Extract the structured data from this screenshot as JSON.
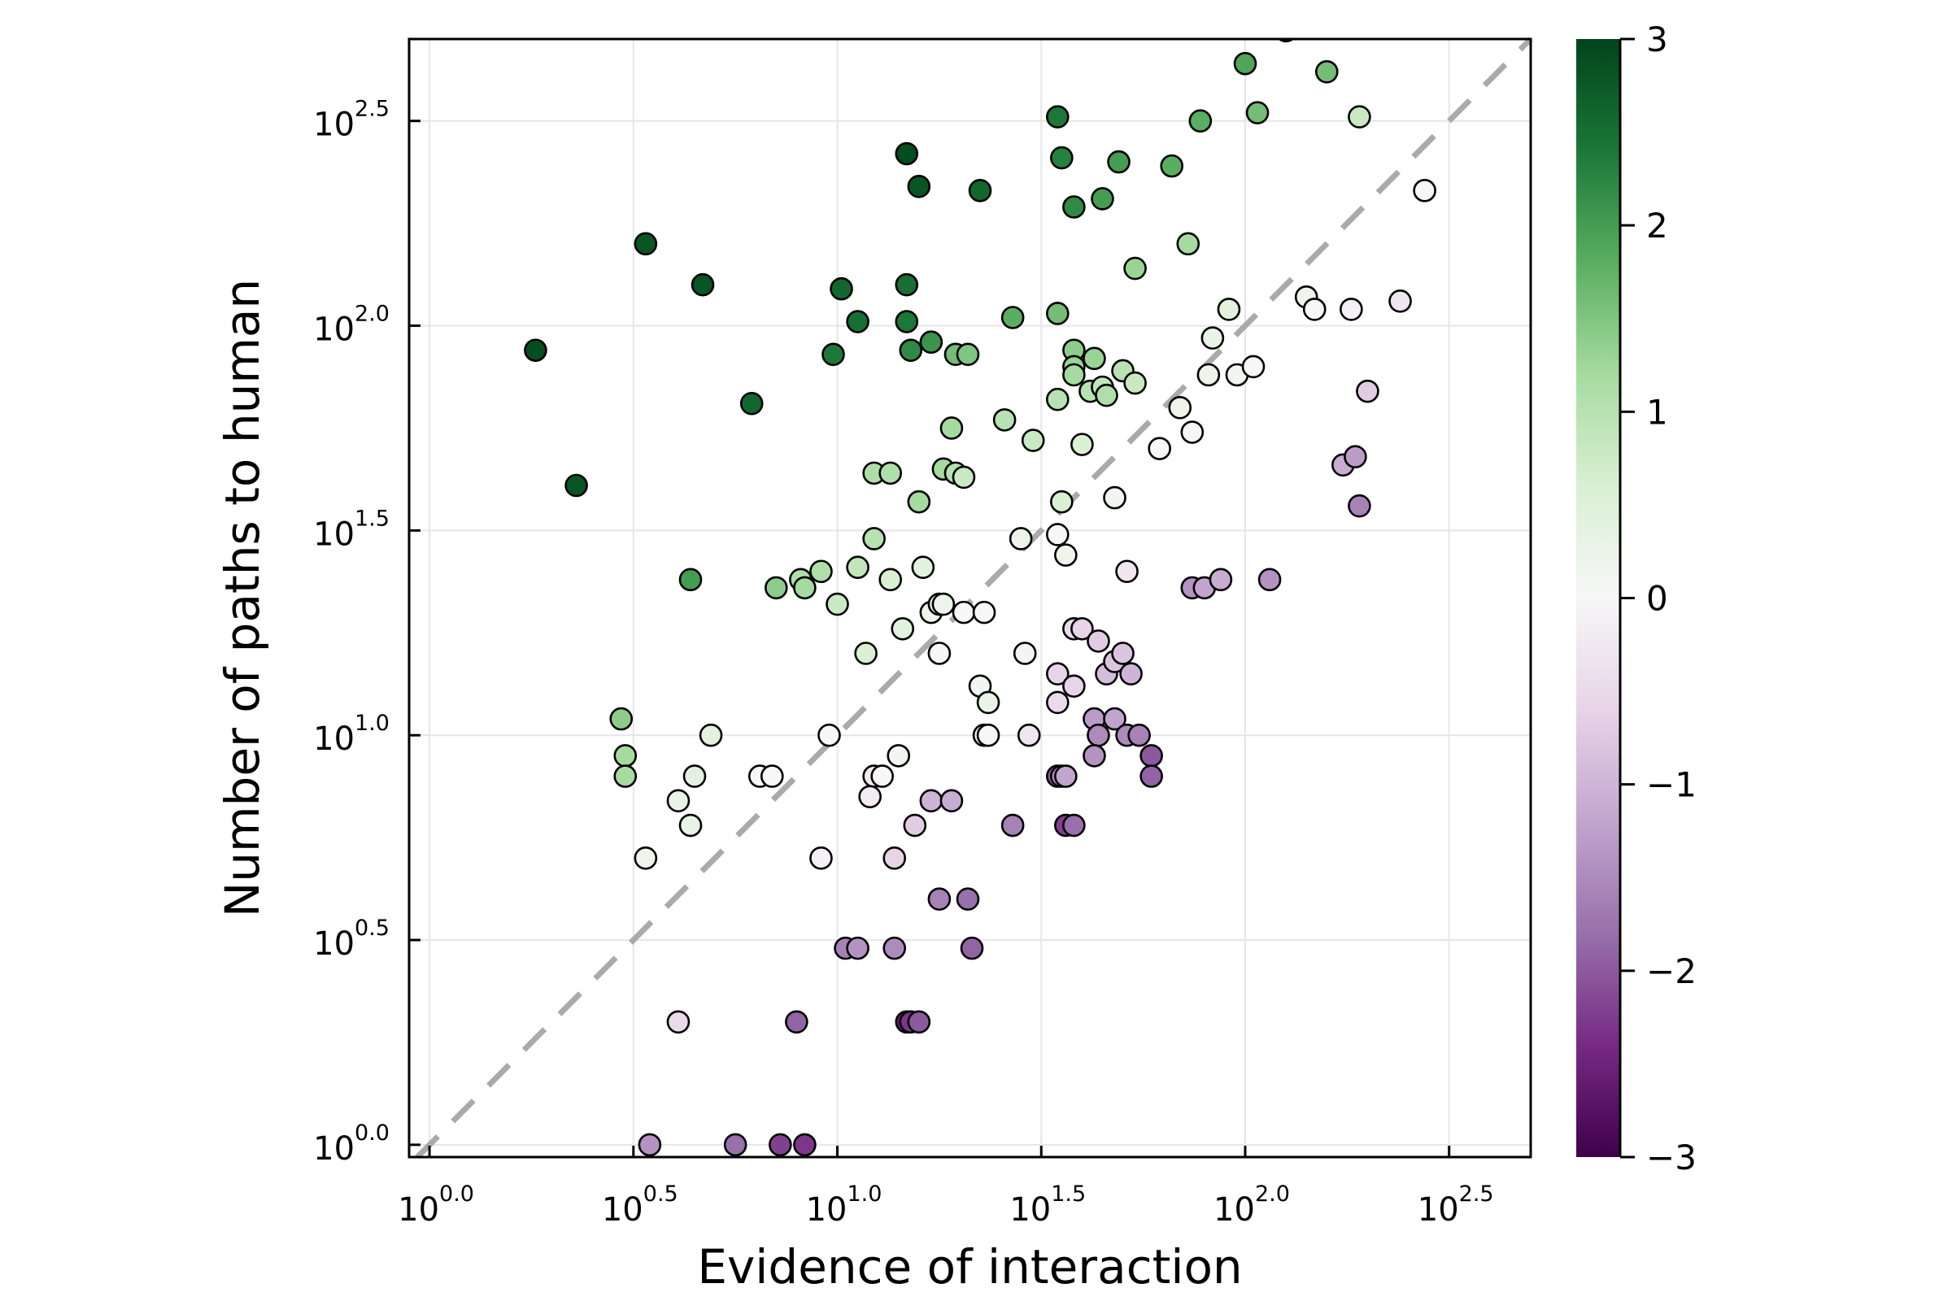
{
  "chart_data": {
    "type": "scatter",
    "title": "",
    "xlabel": "Evidence of interaction",
    "ylabel": "Number of paths to human",
    "x_scale": "log10",
    "y_scale": "log10",
    "xlim_log10": [
      -0.05,
      2.7
    ],
    "ylim_log10": [
      -0.03,
      2.7
    ],
    "x_ticks": [
      {
        "base": "10",
        "exp": "0.0",
        "value": 0.0
      },
      {
        "base": "10",
        "exp": "0.5",
        "value": 0.5
      },
      {
        "base": "10",
        "exp": "1.0",
        "value": 1.0
      },
      {
        "base": "10",
        "exp": "1.5",
        "value": 1.5
      },
      {
        "base": "10",
        "exp": "2.0",
        "value": 2.0
      },
      {
        "base": "10",
        "exp": "2.5",
        "value": 2.5
      }
    ],
    "y_ticks": [
      {
        "base": "10",
        "exp": "0.0",
        "value": 0.0
      },
      {
        "base": "10",
        "exp": "0.5",
        "value": 0.5
      },
      {
        "base": "10",
        "exp": "1.0",
        "value": 1.0
      },
      {
        "base": "10",
        "exp": "1.5",
        "value": 1.5
      },
      {
        "base": "10",
        "exp": "2.0",
        "value": 2.0
      },
      {
        "base": "10",
        "exp": "2.5",
        "value": 2.5
      }
    ],
    "grid": true,
    "reference_line": {
      "style": "dashed",
      "color": "#aaaaaa",
      "description": "y = x"
    },
    "colorbar": {
      "min": -3,
      "max": 3,
      "ticks": [
        "3",
        "2",
        "1",
        "0",
        "−1",
        "−2",
        "−3"
      ],
      "tick_values": [
        3,
        2,
        1,
        0,
        -1,
        -2,
        -3
      ],
      "colormap": "PRGn",
      "stops": [
        "#40004b",
        "#762a83",
        "#9970ab",
        "#c2a5cf",
        "#e7d4e8",
        "#f7f7f7",
        "#d9f0d3",
        "#a6dba0",
        "#5aae61",
        "#1b7837",
        "#00441b"
      ]
    },
    "points": [
      {
        "x": 0.26,
        "y": 1.94,
        "c": 2.9
      },
      {
        "x": 0.36,
        "y": 1.61,
        "c": 2.8
      },
      {
        "x": 0.53,
        "y": 2.2,
        "c": 2.8
      },
      {
        "x": 0.67,
        "y": 2.1,
        "c": 2.8
      },
      {
        "x": 0.79,
        "y": 1.81,
        "c": 2.6
      },
      {
        "x": 0.64,
        "y": 1.38,
        "c": 2.0
      },
      {
        "x": 0.47,
        "y": 1.04,
        "c": 1.4
      },
      {
        "x": 0.48,
        "y": 0.95,
        "c": 1.2
      },
      {
        "x": 0.48,
        "y": 0.9,
        "c": 1.2
      },
      {
        "x": 0.53,
        "y": 0.7,
        "c": 0.2
      },
      {
        "x": 0.61,
        "y": 0.84,
        "c": 0.3
      },
      {
        "x": 0.64,
        "y": 0.78,
        "c": 0.3
      },
      {
        "x": 0.65,
        "y": 0.9,
        "c": 0.4
      },
      {
        "x": 0.69,
        "y": 1.0,
        "c": 0.4
      },
      {
        "x": 0.61,
        "y": 0.3,
        "c": -0.5
      },
      {
        "x": 0.54,
        "y": 0.0,
        "c": -1.4
      },
      {
        "x": 0.75,
        "y": 0.0,
        "c": -1.8
      },
      {
        "x": 0.86,
        "y": 0.0,
        "c": -2.2
      },
      {
        "x": 0.92,
        "y": 0.0,
        "c": -2.3
      },
      {
        "x": 0.9,
        "y": 0.3,
        "c": -1.9
      },
      {
        "x": 0.81,
        "y": 0.9,
        "c": 0.0
      },
      {
        "x": 0.84,
        "y": 0.9,
        "c": 0.0
      },
      {
        "x": 0.85,
        "y": 1.36,
        "c": 1.4
      },
      {
        "x": 0.91,
        "y": 1.38,
        "c": 1.1
      },
      {
        "x": 0.92,
        "y": 1.36,
        "c": 1.2
      },
      {
        "x": 0.96,
        "y": 1.4,
        "c": 1.1
      },
      {
        "x": 0.96,
        "y": 0.7,
        "c": -0.1
      },
      {
        "x": 0.98,
        "y": 1.0,
        "c": 0.0
      },
      {
        "x": 1.0,
        "y": 1.32,
        "c": 0.8
      },
      {
        "x": 0.99,
        "y": 1.93,
        "c": 2.4
      },
      {
        "x": 1.01,
        "y": 2.09,
        "c": 2.6
      },
      {
        "x": 1.05,
        "y": 2.01,
        "c": 2.5
      },
      {
        "x": 1.05,
        "y": 1.41,
        "c": 0.9
      },
      {
        "x": 1.07,
        "y": 1.2,
        "c": 0.6
      },
      {
        "x": 1.09,
        "y": 1.64,
        "c": 1.1
      },
      {
        "x": 1.09,
        "y": 1.48,
        "c": 1.0
      },
      {
        "x": 1.09,
        "y": 0.9,
        "c": -0.2
      },
      {
        "x": 1.11,
        "y": 0.9,
        "c": 0.0
      },
      {
        "x": 1.08,
        "y": 0.85,
        "c": -0.2
      },
      {
        "x": 1.02,
        "y": 0.48,
        "c": -1.6
      },
      {
        "x": 1.05,
        "y": 0.48,
        "c": -1.4
      },
      {
        "x": 1.13,
        "y": 1.64,
        "c": 1.1
      },
      {
        "x": 1.13,
        "y": 1.38,
        "c": 0.6
      },
      {
        "x": 1.14,
        "y": 0.7,
        "c": -0.6
      },
      {
        "x": 1.15,
        "y": 0.95,
        "c": 0.1
      },
      {
        "x": 1.14,
        "y": 0.48,
        "c": -1.5
      },
      {
        "x": 1.16,
        "y": 1.26,
        "c": 0.4
      },
      {
        "x": 1.17,
        "y": 2.42,
        "c": 2.9
      },
      {
        "x": 1.2,
        "y": 2.34,
        "c": 2.8
      },
      {
        "x": 1.17,
        "y": 2.1,
        "c": 2.5
      },
      {
        "x": 1.17,
        "y": 2.01,
        "c": 2.4
      },
      {
        "x": 1.18,
        "y": 1.94,
        "c": 2.2
      },
      {
        "x": 1.2,
        "y": 1.57,
        "c": 1.2
      },
      {
        "x": 1.21,
        "y": 1.41,
        "c": 0.4
      },
      {
        "x": 1.23,
        "y": 1.96,
        "c": 2.1
      },
      {
        "x": 1.23,
        "y": 1.3,
        "c": 0.2
      },
      {
        "x": 1.25,
        "y": 1.32,
        "c": 0.3
      },
      {
        "x": 1.26,
        "y": 1.32,
        "c": 0.2
      },
      {
        "x": 1.25,
        "y": 1.2,
        "c": 0.0
      },
      {
        "x": 1.19,
        "y": 0.78,
        "c": -0.7
      },
      {
        "x": 1.23,
        "y": 0.84,
        "c": -1.0
      },
      {
        "x": 1.28,
        "y": 0.84,
        "c": -1.1
      },
      {
        "x": 1.25,
        "y": 0.6,
        "c": -1.6
      },
      {
        "x": 1.32,
        "y": 0.6,
        "c": -1.8
      },
      {
        "x": 1.33,
        "y": 0.48,
        "c": -1.9
      },
      {
        "x": 1.17,
        "y": 0.3,
        "c": -2.6
      },
      {
        "x": 1.18,
        "y": 0.3,
        "c": -2.3
      },
      {
        "x": 1.2,
        "y": 0.3,
        "c": -2.0
      },
      {
        "x": 1.26,
        "y": 1.65,
        "c": 1.2
      },
      {
        "x": 1.28,
        "y": 1.75,
        "c": 1.2
      },
      {
        "x": 1.29,
        "y": 1.64,
        "c": 1.0
      },
      {
        "x": 1.31,
        "y": 1.63,
        "c": 0.8
      },
      {
        "x": 1.29,
        "y": 1.93,
        "c": 1.6
      },
      {
        "x": 1.32,
        "y": 1.93,
        "c": 1.5
      },
      {
        "x": 1.35,
        "y": 2.33,
        "c": 2.6
      },
      {
        "x": 1.31,
        "y": 1.3,
        "c": 0.0
      },
      {
        "x": 1.36,
        "y": 1.3,
        "c": 0.0
      },
      {
        "x": 1.35,
        "y": 1.12,
        "c": 0.1
      },
      {
        "x": 1.37,
        "y": 1.08,
        "c": 0.3
      },
      {
        "x": 1.36,
        "y": 1.0,
        "c": -0.2
      },
      {
        "x": 1.37,
        "y": 1.0,
        "c": 0.0
      },
      {
        "x": 1.41,
        "y": 1.77,
        "c": 1.0
      },
      {
        "x": 1.43,
        "y": 2.02,
        "c": 1.8
      },
      {
        "x": 1.45,
        "y": 1.48,
        "c": 0.2
      },
      {
        "x": 1.46,
        "y": 1.2,
        "c": 0.1
      },
      {
        "x": 1.47,
        "y": 1.0,
        "c": -0.3
      },
      {
        "x": 1.48,
        "y": 1.72,
        "c": 0.8
      },
      {
        "x": 1.43,
        "y": 0.78,
        "c": -1.6
      },
      {
        "x": 1.54,
        "y": 2.51,
        "c": 2.4
      },
      {
        "x": 1.55,
        "y": 2.41,
        "c": 2.3
      },
      {
        "x": 1.54,
        "y": 2.03,
        "c": 1.6
      },
      {
        "x": 1.58,
        "y": 2.29,
        "c": 2.2
      },
      {
        "x": 1.58,
        "y": 1.94,
        "c": 1.4
      },
      {
        "x": 1.58,
        "y": 1.9,
        "c": 1.3
      },
      {
        "x": 1.58,
        "y": 1.88,
        "c": 1.2
      },
      {
        "x": 1.54,
        "y": 1.82,
        "c": 1.0
      },
      {
        "x": 1.55,
        "y": 1.57,
        "c": 0.6
      },
      {
        "x": 1.54,
        "y": 1.49,
        "c": 0.0
      },
      {
        "x": 1.56,
        "y": 1.44,
        "c": 0.2
      },
      {
        "x": 1.58,
        "y": 1.26,
        "c": -0.5
      },
      {
        "x": 1.6,
        "y": 1.26,
        "c": -0.6
      },
      {
        "x": 1.54,
        "y": 1.15,
        "c": -0.6
      },
      {
        "x": 1.58,
        "y": 1.12,
        "c": -0.6
      },
      {
        "x": 1.54,
        "y": 1.08,
        "c": -0.5
      },
      {
        "x": 1.54,
        "y": 0.9,
        "c": -2.0
      },
      {
        "x": 1.55,
        "y": 0.9,
        "c": -1.4
      },
      {
        "x": 1.56,
        "y": 0.9,
        "c": -1.2
      },
      {
        "x": 1.56,
        "y": 0.78,
        "c": -2.2
      },
      {
        "x": 1.58,
        "y": 0.78,
        "c": -1.8
      },
      {
        "x": 1.6,
        "y": 1.71,
        "c": 0.6
      },
      {
        "x": 1.62,
        "y": 1.84,
        "c": 1.0
      },
      {
        "x": 1.63,
        "y": 1.92,
        "c": 1.3
      },
      {
        "x": 1.65,
        "y": 2.31,
        "c": 2.0
      },
      {
        "x": 1.65,
        "y": 1.85,
        "c": 0.9
      },
      {
        "x": 1.66,
        "y": 1.83,
        "c": 1.1
      },
      {
        "x": 1.63,
        "y": 1.04,
        "c": -1.3
      },
      {
        "x": 1.64,
        "y": 1.0,
        "c": -1.5
      },
      {
        "x": 1.63,
        "y": 0.95,
        "c": -1.4
      },
      {
        "x": 1.64,
        "y": 1.23,
        "c": -0.7
      },
      {
        "x": 1.66,
        "y": 1.15,
        "c": -0.9
      },
      {
        "x": 1.68,
        "y": 1.18,
        "c": -0.8
      },
      {
        "x": 1.68,
        "y": 1.04,
        "c": -1.2
      },
      {
        "x": 1.69,
        "y": 2.4,
        "c": 2.0
      },
      {
        "x": 1.68,
        "y": 1.58,
        "c": 0.1
      },
      {
        "x": 1.7,
        "y": 1.89,
        "c": 1.0
      },
      {
        "x": 1.7,
        "y": 1.2,
        "c": -0.8
      },
      {
        "x": 1.71,
        "y": 1.0,
        "c": -1.5
      },
      {
        "x": 1.72,
        "y": 1.15,
        "c": -1.0
      },
      {
        "x": 1.73,
        "y": 2.14,
        "c": 1.3
      },
      {
        "x": 1.73,
        "y": 1.86,
        "c": 0.8
      },
      {
        "x": 1.71,
        "y": 1.4,
        "c": -0.3
      },
      {
        "x": 1.74,
        "y": 1.0,
        "c": -1.6
      },
      {
        "x": 1.77,
        "y": 0.95,
        "c": -2.0
      },
      {
        "x": 1.77,
        "y": 0.9,
        "c": -1.9
      },
      {
        "x": 1.79,
        "y": 1.7,
        "c": 0.0
      },
      {
        "x": 1.82,
        "y": 2.39,
        "c": 1.8
      },
      {
        "x": 1.84,
        "y": 1.8,
        "c": 0.2
      },
      {
        "x": 1.86,
        "y": 2.2,
        "c": 1.2
      },
      {
        "x": 1.87,
        "y": 1.74,
        "c": 0.0
      },
      {
        "x": 1.87,
        "y": 1.36,
        "c": -1.4
      },
      {
        "x": 1.89,
        "y": 2.5,
        "c": 1.8
      },
      {
        "x": 1.9,
        "y": 1.36,
        "c": -1.2
      },
      {
        "x": 1.91,
        "y": 1.88,
        "c": 0.2
      },
      {
        "x": 1.92,
        "y": 1.97,
        "c": 0.3
      },
      {
        "x": 1.94,
        "y": 1.38,
        "c": -1.1
      },
      {
        "x": 1.96,
        "y": 2.04,
        "c": 0.4
      },
      {
        "x": 1.98,
        "y": 1.88,
        "c": 0.1
      },
      {
        "x": 2.0,
        "y": 2.64,
        "c": 1.9
      },
      {
        "x": 2.02,
        "y": 1.9,
        "c": 0.0
      },
      {
        "x": 2.03,
        "y": 2.52,
        "c": 1.6
      },
      {
        "x": 2.06,
        "y": 1.38,
        "c": -1.4
      },
      {
        "x": 2.1,
        "y": 2.72,
        "c": 0.4
      },
      {
        "x": 2.15,
        "y": 2.07,
        "c": 0.2
      },
      {
        "x": 2.17,
        "y": 2.04,
        "c": 0.0
      },
      {
        "x": 2.2,
        "y": 2.62,
        "c": 1.6
      },
      {
        "x": 2.24,
        "y": 1.66,
        "c": -1.1
      },
      {
        "x": 2.26,
        "y": 2.04,
        "c": -0.1
      },
      {
        "x": 2.27,
        "y": 1.68,
        "c": -1.3
      },
      {
        "x": 2.28,
        "y": 1.56,
        "c": -1.6
      },
      {
        "x": 2.28,
        "y": 2.51,
        "c": 0.8
      },
      {
        "x": 2.3,
        "y": 1.84,
        "c": -0.7
      },
      {
        "x": 2.38,
        "y": 2.06,
        "c": -0.3
      },
      {
        "x": 2.44,
        "y": 2.33,
        "c": 0.0
      }
    ]
  }
}
